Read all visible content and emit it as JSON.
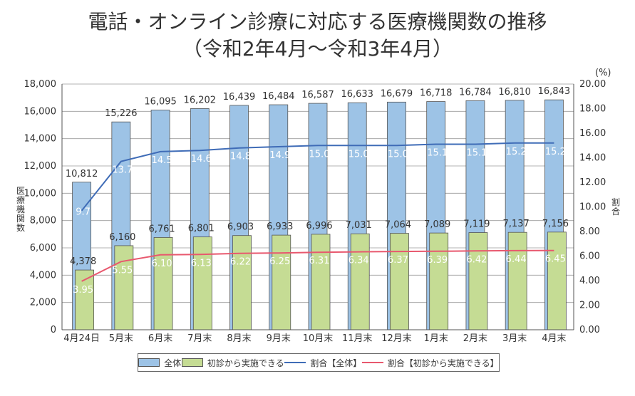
{
  "title": "電話・オンライン診療に対応する医療機関数の推移",
  "subtitle": "（令和2年4月〜令和3年4月）",
  "colors": {
    "total_bar": "#9dc3e6",
    "initial_bar": "#c5dc94",
    "total_line": "#3f6cb7",
    "initial_line": "#e8586e",
    "grid": "#9a9a9a"
  },
  "legend": {
    "total": "全体",
    "initial": "初診から実施できる",
    "ratio_total": "割合【全体】",
    "ratio_initial": "割合【初診から実施できる】"
  },
  "chart_data": {
    "type": "bar",
    "title": "電話・オンライン診療に対応する医療機関数の推移",
    "subtitle": "（令和2年4月〜令和3年4月）",
    "ylabel": "医療機関数",
    "y2label": "割合",
    "y2unit": "(%)",
    "ylim": [
      0,
      18000
    ],
    "y2lim": [
      0,
      20
    ],
    "yticks": [
      "0",
      "2,000",
      "4,000",
      "6,000",
      "8,000",
      "10,000",
      "12,000",
      "14,000",
      "16,000",
      "18,000"
    ],
    "y2ticks": [
      "0.00",
      "2.00",
      "4.00",
      "6.00",
      "8.00",
      "10.00",
      "12.00",
      "14.00",
      "16.00",
      "18.00",
      "20.00"
    ],
    "categories": [
      "4月24日",
      "5月末",
      "6月末",
      "7月末",
      "8月末",
      "9月末",
      "10月末",
      "11月末",
      "12月末",
      "1月末",
      "2月末",
      "3月末",
      "4月末"
    ],
    "series": [
      {
        "name": "全体",
        "kind": "bar",
        "axis": "left",
        "values": [
          10812,
          15226,
          16095,
          16202,
          16439,
          16484,
          16587,
          16633,
          16679,
          16718,
          16784,
          16810,
          16843
        ],
        "labels": [
          "10,812",
          "15,226",
          "16,095",
          "16,202",
          "16,439",
          "16,484",
          "16,587",
          "16,633",
          "16,679",
          "16,718",
          "16,784",
          "16,810",
          "16,843"
        ]
      },
      {
        "name": "初診から実施できる",
        "kind": "bar",
        "axis": "left",
        "values": [
          4378,
          6160,
          6761,
          6801,
          6903,
          6933,
          6996,
          7031,
          7064,
          7089,
          7119,
          7137,
          7156
        ],
        "labels": [
          "4,378",
          "6,160",
          "6,761",
          "6,801",
          "6,903",
          "6,933",
          "6,996",
          "7,031",
          "7,064",
          "7,089",
          "7,119",
          "7,137",
          "7,156"
        ]
      },
      {
        "name": "割合【全体】",
        "kind": "line",
        "axis": "right",
        "values": [
          9.7,
          13.7,
          14.5,
          14.6,
          14.8,
          14.9,
          15.0,
          15.0,
          15.0,
          15.1,
          15.1,
          15.2,
          15.2
        ],
        "labels": [
          "9.7",
          "13.7",
          "14.5",
          "14.6",
          "14.8",
          "14.9",
          "15.0",
          "15.0",
          "15.0",
          "15.1",
          "15.1",
          "15.2",
          "15.2"
        ]
      },
      {
        "name": "割合【初診から実施できる】",
        "kind": "line",
        "axis": "right",
        "values": [
          3.95,
          5.55,
          6.1,
          6.13,
          6.22,
          6.25,
          6.31,
          6.34,
          6.37,
          6.39,
          6.42,
          6.44,
          6.45
        ],
        "labels": [
          "3.95",
          "5.55",
          "6.10",
          "6.13",
          "6.22",
          "6.25",
          "6.31",
          "6.34",
          "6.37",
          "6.39",
          "6.42",
          "6.44",
          "6.45"
        ]
      }
    ],
    "grid": true,
    "legend_position": "bottom"
  }
}
